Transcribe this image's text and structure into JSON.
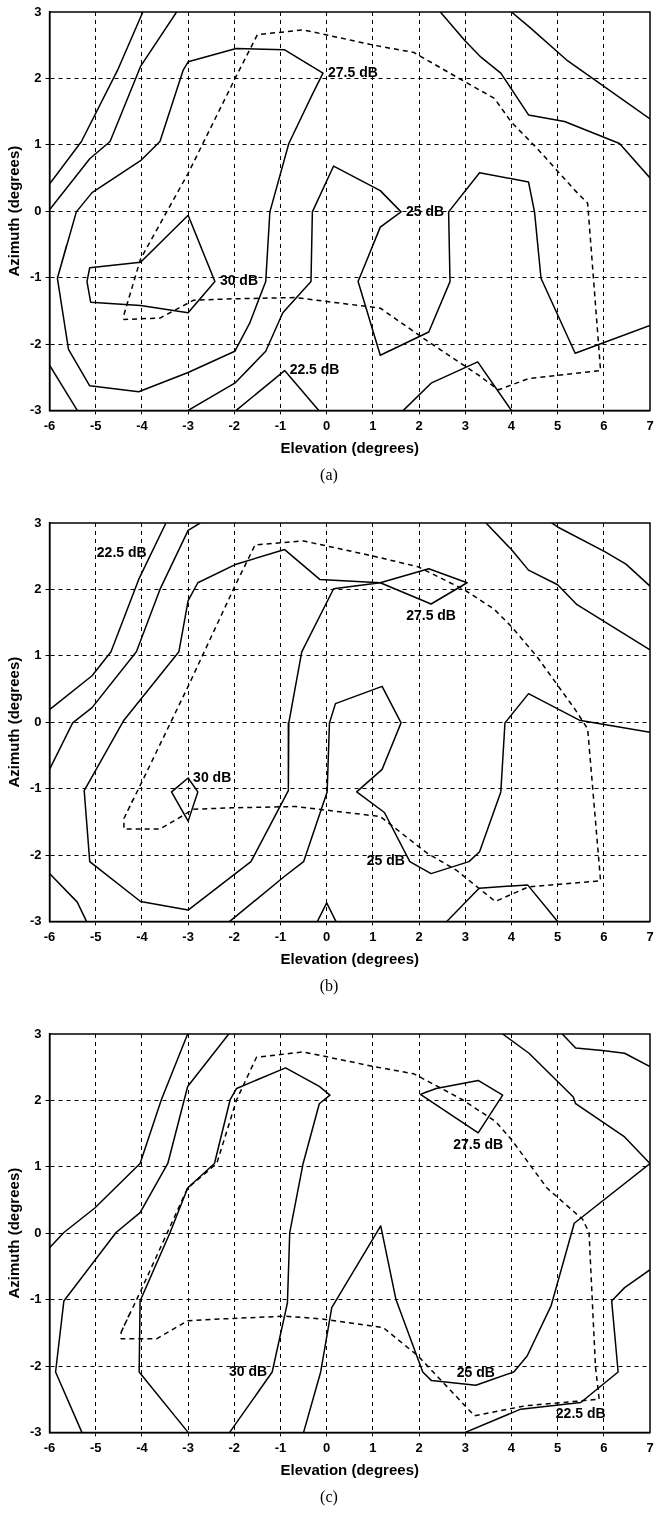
{
  "chart_data": [
    {
      "type": "line",
      "xlabel": "Elevation (degrees)",
      "ylabel": "Azimuth (degrees)",
      "xlim": [
        -6,
        7
      ],
      "ylim": [
        -3,
        3
      ],
      "xticks": [
        -6,
        -5,
        -4,
        -3,
        -2,
        -1,
        0,
        1,
        2,
        3,
        4,
        5,
        6,
        7
      ],
      "yticks": [
        -3,
        -2,
        -1,
        0,
        1,
        2,
        3
      ],
      "grid": true,
      "legend": false,
      "marker": "none",
      "annotations": [
        {
          "text": "27.5 dB",
          "x": -0.08,
          "y": 2.08
        },
        {
          "text": "25 dB",
          "x": 1.61,
          "y": -0.01
        },
        {
          "text": "30 dB",
          "x": -2.42,
          "y": -1.06
        },
        {
          "text": "22.5 dB",
          "x": -0.91,
          "y": -2.4
        },
        "(a)"
      ],
      "series": [
        {
          "color": "#000000",
          "line_style": "solid",
          "x": [
            -6,
            -5.31,
            -4.53,
            -3.98
          ],
          "values": [
            0.41,
            1.05,
            2.12,
            3
          ]
        },
        {
          "color": "#000000",
          "line_style": "solid",
          "x": [
            -6,
            -5.13,
            -4.69,
            -4.03,
            -3.25
          ],
          "values": [
            0.02,
            0.79,
            1.05,
            2.18,
            3
          ]
        },
        {
          "color": "#000000",
          "line_style": "solid",
          "x": [
            -5.83,
            -5.42,
            -5.08,
            -4.03,
            -3.61,
            -3.11,
            -3,
            -1.96,
            -0.91,
            -0.08,
            -0.31,
            -0.82,
            -1.23,
            -1.32,
            -1.67,
            -1.99,
            -3,
            -4.07,
            -5.13,
            -5.59,
            -5.83,
            -5.63
          ],
          "values": [
            -1.01,
            -0.01,
            0.28,
            0.76,
            1.05,
            2.12,
            2.25,
            2.45,
            2.43,
            2.08,
            1.76,
            1.02,
            -0.01,
            -1.06,
            -1.69,
            -2.11,
            -2.43,
            -2.72,
            -2.63,
            -2.08,
            -1.01,
            -0.51
          ]
        },
        {
          "color": "#000000",
          "line_style": "solid",
          "x": [
            -3,
            -2.42,
            -3,
            -4.03,
            -5.11,
            -5.19,
            -5.13,
            -4.03,
            -3,
            -2.71
          ],
          "values": [
            -0.06,
            -1.06,
            -1.53,
            -1.42,
            -1.37,
            -1.06,
            -0.85,
            -0.77,
            -0.06,
            -0.56
          ]
        },
        {
          "color": "#000000",
          "line_style": "solid",
          "x": [
            -3,
            -1.99,
            -1.32,
            -0.95,
            -0.34,
            -0.31,
            0.15,
            1.16,
            1.61,
            1.16,
            0.68,
            1.16,
            2.21,
            2.67,
            2.64,
            3.31,
            4.37,
            4.5,
            4.64,
            5.38,
            7
          ],
          "values": [
            -3,
            -2.59,
            -2.11,
            -1.53,
            -1.06,
            -0.01,
            0.68,
            0.31,
            -0.01,
            -0.24,
            -1.06,
            -2.17,
            -1.82,
            -1.06,
            -0.01,
            0.58,
            0.44,
            -0.01,
            -1.01,
            -2.14,
            -1.72
          ]
        },
        {
          "color": "#000000",
          "line_style": "solid",
          "x": [
            -1.96,
            -0.91,
            -0.17
          ],
          "values": [
            -3,
            -2.4,
            -3
          ]
        },
        {
          "color": "#000000",
          "line_style": "solid",
          "x": [
            1.66,
            2.26,
            3.27,
            4
          ],
          "values": [
            -3,
            -2.59,
            -2.27,
            -3
          ]
        },
        {
          "color": "#000000",
          "line_style": "solid",
          "x": [
            -6,
            -5.4
          ],
          "values": [
            -2.32,
            -3
          ]
        },
        {
          "color": "#000000",
          "line_style": "solid",
          "x": [
            2.46,
            2.99,
            3.34,
            3.77,
            4.37,
            5.15,
            6.34,
            7
          ],
          "values": [
            3,
            2.57,
            2.32,
            2.08,
            1.45,
            1.35,
            1.02,
            0.5
          ]
        },
        {
          "color": "#000000",
          "line_style": "solid",
          "x": [
            4,
            4.41,
            5.19,
            7
          ],
          "values": [
            3,
            2.76,
            2.28,
            1.39
          ]
        },
        {
          "color": "#000000",
          "line_style": "dashed",
          "x": [
            -4.39,
            -4.03,
            -3,
            -1.99,
            -1.5,
            -0.5,
            1.02,
            1.89,
            2.99,
            3.63,
            4,
            4.55,
            5.38,
            5.65,
            5.93,
            4.37,
            3.72,
            3.27,
            2.17,
            1.16,
            -0.68,
            -2.06,
            -2.88,
            -3.61,
            -4.39,
            -4.39,
            -4.21
          ],
          "values": [
            -1.56,
            -0.72,
            0.57,
            1.99,
            2.66,
            2.73,
            2.5,
            2.39,
            1.95,
            1.7,
            1.34,
            0.95,
            0.31,
            0.12,
            -2.4,
            -2.52,
            -2.69,
            -2.46,
            -1.95,
            -1.46,
            -1.3,
            -1.32,
            -1.34,
            -1.61,
            -1.63,
            -1.56,
            -1.14
          ]
        }
      ]
    },
    {
      "type": "line",
      "xlabel": "Elevation (degrees)",
      "ylabel": "Azimuth (degrees)",
      "xlim": [
        -6,
        7
      ],
      "ylim": [
        -3,
        3
      ],
      "xticks": [
        -6,
        -5,
        -4,
        -3,
        -2,
        -1,
        0,
        1,
        2,
        3,
        4,
        5,
        6,
        7
      ],
      "yticks": [
        -3,
        -2,
        -1,
        0,
        1,
        2,
        3
      ],
      "grid": true,
      "legend": false,
      "marker": "none",
      "annotations": [
        {
          "text": "22.5 dB",
          "x": -3.79,
          "y": 2.55
        },
        {
          "text": "27.5 dB",
          "x": 2.26,
          "y": 1.78
        },
        {
          "text": "30 dB",
          "x": -3,
          "y": -0.84
        },
        {
          "text": "25 dB",
          "x": 1.8,
          "y": -2.1
        },
        "(b)"
      ],
      "series": [
        {
          "color": "#000000",
          "line_style": "solid",
          "x": [
            -6,
            -5.08,
            -4.67,
            -4.07,
            -3.48
          ],
          "values": [
            0.19,
            0.7,
            1.06,
            2.15,
            3
          ]
        },
        {
          "color": "#000000",
          "line_style": "solid",
          "x": [
            -6,
            -5.5,
            -5.08,
            -4.12,
            -3.61,
            -3,
            -2.74
          ],
          "values": [
            -0.71,
            -0.01,
            0.22,
            1.06,
            2,
            2.89,
            3
          ]
        },
        {
          "color": "#000000",
          "line_style": "solid",
          "x": [
            -5.25,
            -4.39,
            -3.2,
            -3,
            -2.79,
            -1.96,
            -0.91,
            -0.15,
            1.16,
            2.21,
            3.04,
            2.26,
            1.16,
            0.15,
            -0.54,
            -0.82,
            -0.83,
            -1.64,
            -3,
            -4.03,
            -5.13,
            -5.25,
            -4.82
          ],
          "values": [
            -1.03,
            0.03,
            1.06,
            1.83,
            2.1,
            2.38,
            2.6,
            2.15,
            2.1,
            2.31,
            2.1,
            1.78,
            2.1,
            2.01,
            1.06,
            -0.01,
            -1.03,
            -2.1,
            -2.83,
            -2.7,
            -2.1,
            -1.03,
            -0.5
          ]
        },
        {
          "color": "#000000",
          "line_style": "solid",
          "x": [
            -3.36,
            -3,
            -2.79,
            -3,
            -3.36,
            -3.18
          ],
          "values": [
            -1.05,
            -0.84,
            -1.05,
            -1.49,
            -1.05,
            -0.95
          ]
        },
        {
          "color": "#000000",
          "line_style": "solid",
          "x": [
            -2.1,
            -0.91,
            -0.5,
            0.01,
            0.06,
            0.19,
            1.2,
            1.61,
            1.2,
            0.65,
            1.25,
            1.8,
            2.26,
            3.08,
            3.31,
            3.77,
            3.86,
            4.37,
            5.47,
            7
          ],
          "values": [
            -3,
            -2.32,
            -2.1,
            -1.05,
            -0.01,
            0.28,
            0.54,
            -0.01,
            -0.71,
            -1.05,
            -1.36,
            -2.1,
            -2.28,
            -2.1,
            -1.95,
            -1.05,
            -0.01,
            0.43,
            0.03,
            -0.15
          ]
        },
        {
          "color": "#000000",
          "line_style": "solid",
          "x": [
            3.45,
            4,
            4.37,
            5,
            5.42,
            7
          ],
          "values": [
            3,
            2.6,
            2.29,
            2.07,
            1.77,
            1.09
          ]
        },
        {
          "color": "#000000",
          "line_style": "solid",
          "x": [
            4.87,
            5,
            6.02,
            6.48,
            7
          ],
          "values": [
            3,
            2.94,
            2.57,
            2.38,
            2.05
          ]
        },
        {
          "color": "#000000",
          "line_style": "solid",
          "x": [
            -6,
            -5.4,
            -5.2
          ],
          "values": [
            -2.28,
            -2.71,
            -3
          ]
        },
        {
          "color": "#000000",
          "line_style": "solid",
          "x": [
            -0.2,
            0,
            0.2
          ],
          "values": [
            -3,
            -2.72,
            -3
          ]
        },
        {
          "color": "#000000",
          "line_style": "solid",
          "x": [
            2.6,
            3.3,
            4.35,
            5
          ],
          "values": [
            -3,
            -2.5,
            -2.45,
            -3
          ]
        },
        {
          "color": "#000000",
          "line_style": "dashed",
          "x": [
            -4.39,
            -3.98,
            -3,
            -1.96,
            -1.55,
            -0.5,
            1.02,
            1.98,
            2.99,
            3.63,
            4,
            4.55,
            5.38,
            5.65,
            5.93,
            4.37,
            3.65,
            2.81,
            2.17,
            1.16,
            -0.68,
            -2.06,
            -2.88,
            -3.61,
            -4.39,
            -4.39,
            -4.19
          ],
          "values": [
            -1.45,
            -0.87,
            0.54,
            2.09,
            2.67,
            2.73,
            2.5,
            2.34,
            1.99,
            1.7,
            1.44,
            0.99,
            0.19,
            -0.1,
            -2.39,
            -2.48,
            -2.7,
            -2.23,
            -1.97,
            -1.42,
            -1.27,
            -1.29,
            -1.31,
            -1.61,
            -1.61,
            -1.45,
            -1.16
          ]
        }
      ]
    },
    {
      "type": "line",
      "xlabel": "Elevation (degrees)",
      "ylabel": "Azimuth (degrees)",
      "xlim": [
        -6,
        7
      ],
      "ylim": [
        -3,
        3
      ],
      "xticks": [
        -6,
        -5,
        -4,
        -3,
        -2,
        -1,
        0,
        1,
        2,
        3,
        4,
        5,
        6,
        7
      ],
      "yticks": [
        -3,
        -2,
        -1,
        0,
        1,
        2,
        3
      ],
      "grid": true,
      "legend": false,
      "marker": "none",
      "annotations": [
        {
          "text": "27.5 dB",
          "x": 3.28,
          "y": 1.51
        },
        {
          "text": "25 dB",
          "x": 3.23,
          "y": -2.29
        },
        {
          "text": "30 dB",
          "x": -1.18,
          "y": -2.09
        },
        {
          "text": "22.5 dB",
          "x": 5.5,
          "y": -2.55
        },
        "(c)"
      ],
      "series": [
        {
          "color": "#000000",
          "line_style": "solid",
          "x": [
            -6,
            -5.69,
            -5.02,
            -4.04,
            -3.58,
            -3.01
          ],
          "values": [
            -0.22,
            0.01,
            0.38,
            1.05,
            2.01,
            3
          ]
        },
        {
          "color": "#000000",
          "line_style": "solid",
          "x": [
            -5.3,
            -5.87,
            -5.69,
            -4.56,
            -4.04,
            -3.44,
            -3.01,
            -2.12
          ],
          "values": [
            -3,
            -2.09,
            -1.02,
            0.01,
            0.31,
            1.05,
            2.21,
            3
          ]
        },
        {
          "color": "#000000",
          "line_style": "solid",
          "x": [
            -3,
            -4.06,
            -4.04,
            -3.39,
            -3.01,
            -2.43,
            -2.09,
            -1.95,
            -0.89,
            -0.16,
            0.07,
            -0.16,
            -0.51,
            -0.8,
            -0.85,
            -1.18,
            -2.1
          ],
          "values": [
            -3,
            -2.09,
            -1.02,
            0.01,
            0.68,
            1.05,
            2.01,
            2.18,
            2.49,
            2.21,
            2.08,
            1.95,
            1.05,
            0.01,
            -1.05,
            -2.09,
            -3
          ]
        },
        {
          "color": "#000000",
          "line_style": "solid",
          "x": [
            -0.5,
            -0.13,
            0.11,
            1.17,
            1.5,
            2.08,
            2.27,
            3.23,
            4.05,
            4.34,
            4.86,
            5.36,
            7
          ],
          "values": [
            -3,
            -2.09,
            -1.12,
            0.11,
            -1,
            -2.09,
            -2.22,
            -2.29,
            -2.09,
            -1.85,
            -1.09,
            0.15,
            1.05
          ]
        },
        {
          "color": "#000000",
          "line_style": "solid",
          "x": [
            2.03,
            2.37,
            3.28,
            3.81,
            3.28,
            2.03,
            2.2
          ],
          "values": [
            2.09,
            2.18,
            2.3,
            2.08,
            1.51,
            2.09,
            2.14
          ]
        },
        {
          "color": "#000000",
          "line_style": "solid",
          "x": [
            3.81,
            4.38,
            5.34,
            5.39,
            6.45,
            7
          ],
          "values": [
            3,
            2.71,
            2.05,
            1.95,
            1.45,
            1.05
          ]
        },
        {
          "color": "#000000",
          "line_style": "solid",
          "x": [
            5.1,
            5.39,
            5.97,
            6.45,
            7
          ],
          "values": [
            3,
            2.79,
            2.75,
            2.71,
            2.51
          ]
        },
        {
          "color": "#000000",
          "line_style": "solid",
          "x": [
            7,
            6.45,
            6.17,
            6.31,
            5.5,
            4.2,
            3
          ],
          "values": [
            -0.55,
            -0.82,
            -1.02,
            -2.09,
            -2.55,
            -2.65,
            -3
          ]
        },
        {
          "color": "#000000",
          "line_style": "dashed",
          "x": [
            -4.45,
            -4.04,
            -3.01,
            -2.38,
            -1.95,
            -1.52,
            -0.51,
            1.02,
            1.89,
            2.94,
            3.66,
            4,
            4.77,
            5.54,
            5.68,
            5.82,
            5.9,
            4.3,
            3.2,
            1.98,
            1.22,
            -0.13,
            -0.89,
            -2.24,
            -3.01,
            -3.68,
            -4.45,
            -4.45,
            -4.25
          ],
          "values": [
            -1.49,
            -0.89,
            0.68,
            1.05,
            2.01,
            2.65,
            2.73,
            2.51,
            2.4,
            2.01,
            1.68,
            1.41,
            0.68,
            0.21,
            0.01,
            -2.02,
            -2.5,
            -2.6,
            -2.75,
            -1.85,
            -1.42,
            -1.29,
            -1.25,
            -1.29,
            -1.32,
            -1.59,
            -1.59,
            -1.49,
            -1.19
          ]
        }
      ]
    }
  ]
}
